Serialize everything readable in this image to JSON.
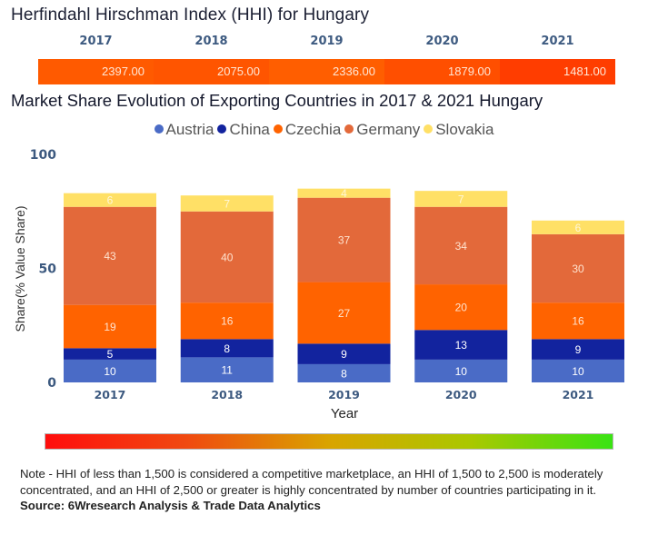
{
  "hhi": {
    "title": "Herfindahl Hirschman Index (HHI) for Hungary",
    "years": [
      "2017",
      "2018",
      "2019",
      "2020",
      "2021"
    ],
    "values": [
      "2397.00",
      "2075.00",
      "2336.00",
      "1879.00",
      "1481.00"
    ],
    "cell_colors": [
      "#ff5a00",
      "#ff5500",
      "#ff5e00",
      "#ff4f00",
      "#ff3d00"
    ]
  },
  "chart_data": {
    "type": "bar",
    "stacked": true,
    "title": "Market Share Evolution of Exporting Countries in 2017 & 2021 Hungary",
    "xlabel": "Year",
    "ylabel": "Share(% Value Share)",
    "ylim": [
      0,
      100
    ],
    "yticks": [
      "0",
      "50",
      "100"
    ],
    "grid": false,
    "legend_position": "top-center",
    "categories": [
      "2017",
      "2018",
      "2019",
      "2020",
      "2021"
    ],
    "series": [
      {
        "name": "Austria",
        "color": "#4a6bc6",
        "values": [
          10,
          11,
          8,
          10,
          10
        ]
      },
      {
        "name": "China",
        "color": "#12239e",
        "values": [
          5,
          8,
          9,
          13,
          9
        ]
      },
      {
        "name": "Czechia",
        "color": "#ff6300",
        "values": [
          19,
          16,
          27,
          20,
          16
        ]
      },
      {
        "name": "Germany",
        "color": "#e3693a",
        "values": [
          43,
          40,
          37,
          34,
          30
        ]
      },
      {
        "name": "Slovakia",
        "color": "#ffe066",
        "values": [
          6,
          7,
          4,
          7,
          6
        ]
      }
    ]
  },
  "scale_bar": {
    "gradient": [
      "#ff0d0d",
      "#d9a400",
      "#39e314"
    ]
  },
  "footer": {
    "note": "Note - HHI of less than 1,500 is considered a competitive marketplace, an HHI of 1,500 to 2,500 is moderately concentrated, and an HHI of 2,500 or greater is highly concentrated by number of countries participating in it.",
    "source": "Source: 6Wresearch Analysis & Trade Data Analytics"
  }
}
